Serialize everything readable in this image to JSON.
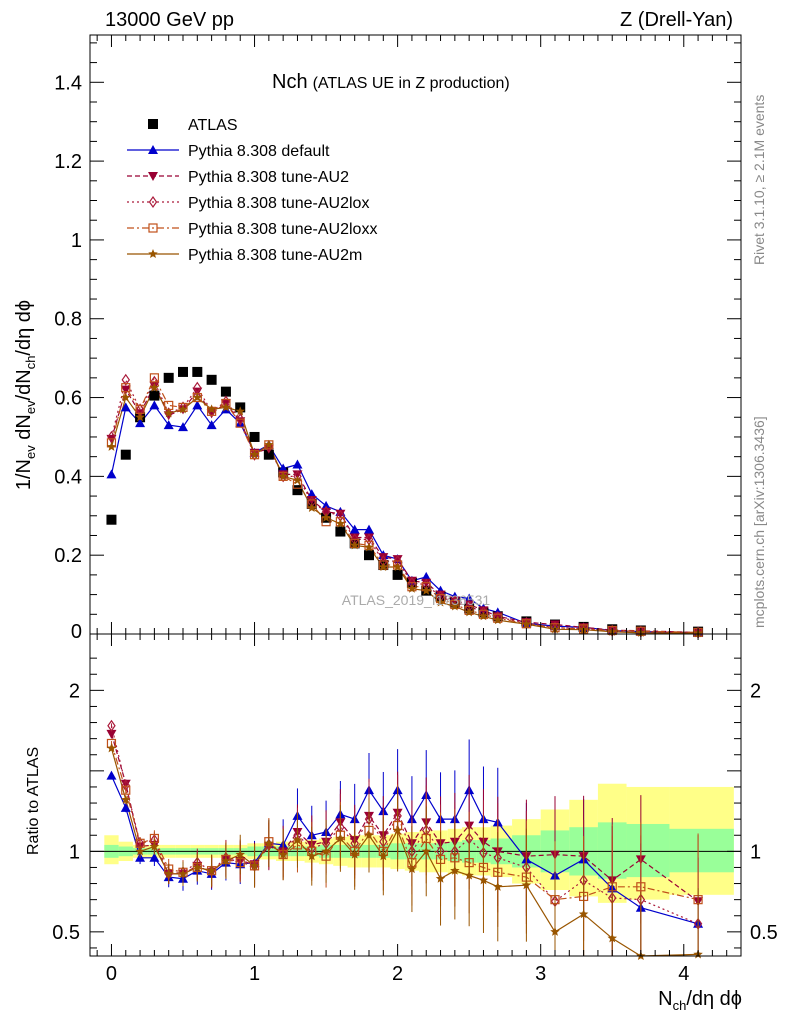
{
  "header": {
    "left_title": "13000 GeV pp",
    "right_title": "Z (Drell-Yan)"
  },
  "side_labels": {
    "rivet": "Rivet 3.1.10, ≥ 2.1M events",
    "mcplots": "mcplots.cern.ch [arXiv:1306.3436]"
  },
  "analysis_id": "ATLAS_2019_I1736531",
  "plot_title": {
    "main": "Nch",
    "sub": "(ATLAS UE in Z production)"
  },
  "axis_labels": {
    "y_top": "1/N_ev dN_ev/dN_ch/dη dϕ",
    "y_ratio": "Ratio to ATLAS",
    "x": "N_ch/dη dϕ"
  },
  "legend": [
    {
      "label": "ATLAS",
      "color": "#000000",
      "marker": "square-filled",
      "line": "none"
    },
    {
      "label": "Pythia 8.308 default",
      "color": "#0000cc",
      "marker": "triangle-filled",
      "line": "solid"
    },
    {
      "label": "Pythia 8.308 tune-AU2",
      "color": "#990033",
      "marker": "triangle-down-filled",
      "line": "dashed"
    },
    {
      "label": "Pythia 8.308 tune-AU2lox",
      "color": "#aa1a3a",
      "marker": "diamond-open",
      "line": "dotted"
    },
    {
      "label": "Pythia 8.308 tune-AU2loxx",
      "color": "#c0501a",
      "marker": "square-open",
      "line": "dashdot"
    },
    {
      "label": "Pythia 8.308 tune-AU2m",
      "color": "#995500",
      "marker": "star",
      "line": "solid"
    }
  ],
  "chart_data": {
    "type": "scatter",
    "title": "Nch (ATLAS UE in Z production)",
    "xlabel": "N_ch/dη dϕ",
    "ylabel": "1/N_ev dN_ev/dN_ch/dη dϕ",
    "ratio_ylabel": "Ratio to ATLAS",
    "xlim": [
      -0.15,
      4.4
    ],
    "ylim": [
      0,
      1.52
    ],
    "ratio_ylim": [
      0.35,
      2.35
    ],
    "xticks": [
      0,
      1,
      2,
      3,
      4
    ],
    "yticks": [
      0.2,
      0.4,
      0.6,
      0.8,
      1,
      1.2,
      1.4
    ],
    "ratio_yticks": [
      0.5,
      1,
      2
    ],
    "grid": false,
    "legend_position": "top-left",
    "x": [
      0,
      0.1,
      0.2,
      0.3,
      0.4,
      0.5,
      0.6,
      0.7,
      0.8,
      0.9,
      1.0,
      1.1,
      1.2,
      1.3,
      1.4,
      1.5,
      1.6,
      1.7,
      1.8,
      1.9,
      2.0,
      2.1,
      2.2,
      2.3,
      2.4,
      2.5,
      2.6,
      2.7,
      2.9,
      3.1,
      3.3,
      3.5,
      3.7,
      4.1
    ],
    "series": [
      {
        "name": "ATLAS",
        "values": [
          0.29,
          0.455,
          0.55,
          0.605,
          0.65,
          0.665,
          0.665,
          0.645,
          0.615,
          0.575,
          0.5,
          0.455,
          0.41,
          0.365,
          0.33,
          0.295,
          0.26,
          0.23,
          0.2,
          0.175,
          0.15,
          0.13,
          0.11,
          0.095,
          0.08,
          0.065,
          0.055,
          0.045,
          0.032,
          0.024,
          0.018,
          0.012,
          0.009,
          0.006
        ]
      },
      {
        "name": "Pythia 8.308 default",
        "values": [
          0.405,
          0.575,
          0.535,
          0.58,
          0.53,
          0.525,
          0.58,
          0.53,
          0.57,
          0.535,
          0.46,
          0.48,
          0.42,
          0.43,
          0.355,
          0.325,
          0.31,
          0.265,
          0.265,
          0.2,
          0.19,
          0.135,
          0.145,
          0.11,
          0.095,
          0.09,
          0.065,
          0.055,
          0.027,
          0.02,
          0.017,
          0.009,
          0.006,
          0.003
        ]
      },
      {
        "name": "Pythia 8.308 tune-AU2",
        "values": [
          0.495,
          0.62,
          0.56,
          0.63,
          0.555,
          0.57,
          0.615,
          0.56,
          0.585,
          0.54,
          0.46,
          0.47,
          0.405,
          0.405,
          0.34,
          0.31,
          0.305,
          0.245,
          0.245,
          0.195,
          0.19,
          0.135,
          0.13,
          0.1,
          0.085,
          0.075,
          0.06,
          0.045,
          0.03,
          0.024,
          0.017,
          0.01,
          0.008,
          0.004
        ]
      },
      {
        "name": "Pythia 8.308 tune-AU2lox",
        "values": [
          0.5,
          0.645,
          0.57,
          0.64,
          0.56,
          0.575,
          0.625,
          0.565,
          0.59,
          0.545,
          0.455,
          0.475,
          0.4,
          0.4,
          0.335,
          0.31,
          0.3,
          0.24,
          0.24,
          0.185,
          0.185,
          0.13,
          0.125,
          0.095,
          0.08,
          0.07,
          0.055,
          0.043,
          0.028,
          0.016,
          0.014,
          0.008,
          0.006,
          0.0035
        ]
      },
      {
        "name": "Pythia 8.308 tune-AU2loxx",
        "values": [
          0.485,
          0.625,
          0.57,
          0.65,
          0.58,
          0.575,
          0.6,
          0.565,
          0.585,
          0.535,
          0.455,
          0.48,
          0.4,
          0.38,
          0.33,
          0.285,
          0.285,
          0.23,
          0.225,
          0.175,
          0.175,
          0.12,
          0.12,
          0.09,
          0.075,
          0.06,
          0.05,
          0.04,
          0.026,
          0.016,
          0.013,
          0.009,
          0.007,
          0.004
        ]
      },
      {
        "name": "Pythia 8.308 tune-AU2m",
        "values": [
          0.475,
          0.6,
          0.55,
          0.625,
          0.56,
          0.57,
          0.6,
          0.57,
          0.575,
          0.565,
          0.455,
          0.48,
          0.4,
          0.39,
          0.32,
          0.295,
          0.28,
          0.225,
          0.22,
          0.17,
          0.17,
          0.115,
          0.11,
          0.08,
          0.07,
          0.055,
          0.045,
          0.035,
          0.025,
          0.012,
          0.011,
          0.0055,
          0.003,
          0.002
        ]
      }
    ],
    "ratio_series": [
      {
        "name": "Pythia 8.308 default",
        "values": [
          1.47,
          1.27,
          0.96,
          0.96,
          0.84,
          0.83,
          0.88,
          0.86,
          0.93,
          0.92,
          0.93,
          1.05,
          1.04,
          1.22,
          1.1,
          1.12,
          1.23,
          1.2,
          1.38,
          1.25,
          1.38,
          1.2,
          1.35,
          1.2,
          1.2,
          1.38,
          1.2,
          1.18,
          0.95,
          0.85,
          0.95,
          0.77,
          0.65,
          0.55
        ]
      },
      {
        "name": "Pythia 8.308 tune-AU2",
        "values": [
          1.73,
          1.42,
          1.03,
          1.04,
          0.86,
          0.86,
          0.91,
          0.87,
          0.95,
          0.94,
          0.92,
          1.03,
          1.0,
          1.12,
          1.04,
          1.06,
          1.18,
          1.07,
          1.22,
          1.1,
          1.24,
          1.05,
          1.18,
          1.05,
          1.06,
          1.16,
          1.06,
          1.0,
          0.97,
          0.98,
          0.97,
          0.82,
          0.95,
          0.69
        ]
      },
      {
        "name": "Pythia 8.308 tune-AU2lox",
        "values": [
          1.78,
          1.41,
          1.05,
          1.07,
          0.86,
          0.87,
          0.93,
          0.88,
          0.96,
          0.95,
          0.91,
          1.04,
          0.99,
          1.1,
          1.02,
          1.05,
          1.15,
          1.05,
          1.2,
          1.06,
          1.22,
          1.0,
          1.13,
          1.0,
          1.0,
          1.08,
          0.99,
          0.96,
          0.9,
          0.69,
          0.82,
          0.71,
          0.7,
          0.55
        ]
      },
      {
        "name": "Pythia 8.308 tune-AU2loxx",
        "values": [
          1.67,
          1.38,
          1.05,
          1.08,
          0.89,
          0.87,
          0.9,
          0.88,
          0.95,
          0.93,
          0.91,
          1.06,
          0.98,
          1.04,
          1.0,
          0.97,
          1.1,
          1.0,
          1.13,
          1.0,
          1.16,
          0.93,
          1.08,
          0.95,
          0.96,
          0.93,
          0.9,
          0.87,
          0.84,
          0.7,
          0.72,
          0.78,
          0.78,
          0.7
        ]
      },
      {
        "name": "Pythia 8.308 tune-AU2m",
        "values": [
          1.64,
          1.32,
          1.0,
          1.03,
          0.86,
          0.86,
          0.9,
          0.88,
          0.94,
          0.98,
          0.91,
          1.05,
          0.98,
          1.07,
          0.97,
          1.0,
          1.08,
          0.98,
          1.1,
          0.97,
          1.13,
          0.89,
          1.0,
          0.83,
          0.88,
          0.85,
          0.82,
          0.78,
          0.79,
          0.5,
          0.61,
          0.46,
          0.35,
          0.36
        ]
      }
    ],
    "ratio_bands": {
      "x_edges": [
        -0.05,
        0.05,
        0.15,
        0.25,
        0.35,
        0.45,
        0.55,
        0.65,
        0.75,
        0.85,
        0.95,
        1.05,
        1.15,
        1.25,
        1.35,
        1.45,
        1.55,
        1.65,
        1.75,
        1.85,
        1.95,
        2.05,
        2.15,
        2.25,
        2.35,
        2.45,
        2.55,
        2.65,
        2.8,
        3.0,
        3.2,
        3.4,
        3.6,
        3.9,
        4.35
      ],
      "inner": [
        [
          0.96,
          1.04
        ],
        [
          0.97,
          1.03
        ],
        [
          0.98,
          1.02
        ],
        [
          0.98,
          1.02
        ],
        [
          0.98,
          1.02
        ],
        [
          0.98,
          1.02
        ],
        [
          0.98,
          1.02
        ],
        [
          0.98,
          1.02
        ],
        [
          0.98,
          1.02
        ],
        [
          0.98,
          1.02
        ],
        [
          0.97,
          1.03
        ],
        [
          0.97,
          1.03
        ],
        [
          0.97,
          1.03
        ],
        [
          0.97,
          1.03
        ],
        [
          0.97,
          1.03
        ],
        [
          0.96,
          1.04
        ],
        [
          0.96,
          1.04
        ],
        [
          0.96,
          1.04
        ],
        [
          0.96,
          1.04
        ],
        [
          0.96,
          1.04
        ],
        [
          0.95,
          1.05
        ],
        [
          0.95,
          1.05
        ],
        [
          0.95,
          1.05
        ],
        [
          0.95,
          1.05
        ],
        [
          0.94,
          1.06
        ],
        [
          0.93,
          1.07
        ],
        [
          0.93,
          1.07
        ],
        [
          0.92,
          1.08
        ],
        [
          0.9,
          1.1
        ],
        [
          0.87,
          1.13
        ],
        [
          0.85,
          1.15
        ],
        [
          0.83,
          1.18
        ],
        [
          0.84,
          1.17
        ],
        [
          0.87,
          1.14
        ]
      ],
      "outer": [
        [
          0.92,
          1.1
        ],
        [
          0.94,
          1.06
        ],
        [
          0.96,
          1.04
        ],
        [
          0.96,
          1.04
        ],
        [
          0.96,
          1.04
        ],
        [
          0.96,
          1.04
        ],
        [
          0.96,
          1.04
        ],
        [
          0.96,
          1.04
        ],
        [
          0.96,
          1.04
        ],
        [
          0.96,
          1.04
        ],
        [
          0.95,
          1.05
        ],
        [
          0.95,
          1.05
        ],
        [
          0.94,
          1.06
        ],
        [
          0.94,
          1.06
        ],
        [
          0.93,
          1.07
        ],
        [
          0.92,
          1.08
        ],
        [
          0.91,
          1.09
        ],
        [
          0.9,
          1.1
        ],
        [
          0.9,
          1.1
        ],
        [
          0.9,
          1.1
        ],
        [
          0.89,
          1.11
        ],
        [
          0.88,
          1.12
        ],
        [
          0.87,
          1.13
        ],
        [
          0.87,
          1.13
        ],
        [
          0.86,
          1.14
        ],
        [
          0.85,
          1.15
        ],
        [
          0.85,
          1.15
        ],
        [
          0.84,
          1.16
        ],
        [
          0.8,
          1.2
        ],
        [
          0.76,
          1.26
        ],
        [
          0.72,
          1.32
        ],
        [
          0.68,
          1.42
        ],
        [
          0.7,
          1.4
        ],
        [
          0.73,
          1.4
        ]
      ],
      "colors": {
        "inner": "#99ff99",
        "outer": "#ffff88"
      }
    }
  }
}
